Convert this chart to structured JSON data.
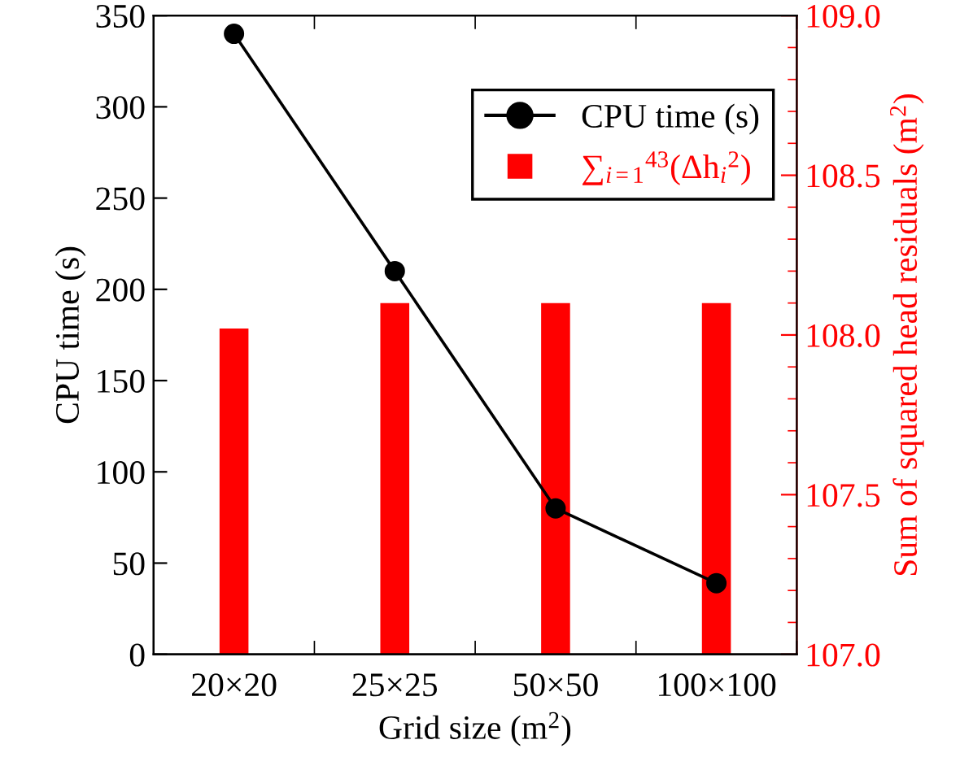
{
  "chart_data": {
    "type": "bar",
    "xlabel": "Grid size (m$^{2}$)",
    "ylabel": "CPU time (s)",
    "y2label": "Sum of squared head residuals (m$^{2}$)",
    "categories": [
      "20×20",
      "25×25",
      "50×50",
      "100×100"
    ],
    "series": [
      {
        "name": "CPU time (s)",
        "type": "line",
        "color": "#000000",
        "values": [
          340,
          210,
          80,
          39
        ],
        "marker": "circle",
        "line_style": "solid"
      },
      {
        "name": "∑$_{i=1}$$^{43}$(Δh$_{i}$$^{2}$)",
        "axis": "y2",
        "color": "#ff0000",
        "values": [
          108.02,
          108.1,
          108.1,
          108.1
        ]
      }
    ],
    "ylim": [
      0,
      350
    ],
    "yticks": [
      0,
      50,
      100,
      150,
      200,
      250,
      300,
      350
    ],
    "y2lim": [
      107.0,
      109.0
    ],
    "y2ticks": [
      {
        "value": 107.0,
        "label": "107.0"
      },
      {
        "value": 107.5,
        "label": "107.5"
      },
      {
        "value": 108.0,
        "label": "108.0"
      },
      {
        "value": 108.5,
        "label": "108.5"
      },
      {
        "value": 109.0,
        "label": "109.0"
      }
    ],
    "legend": "top right",
    "grid": false
  }
}
